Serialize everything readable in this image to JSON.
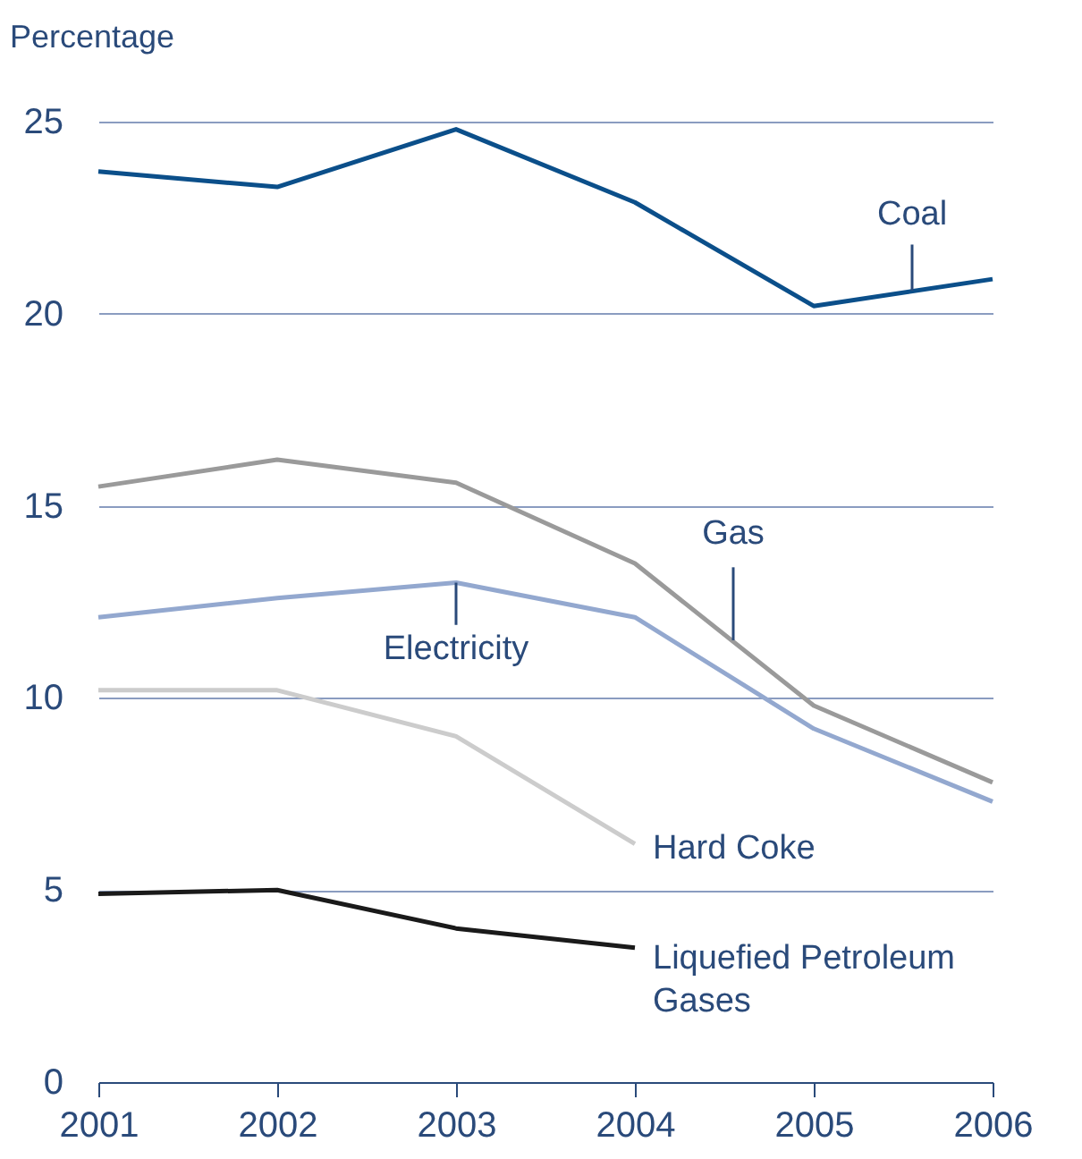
{
  "chart_data": {
    "type": "line",
    "ylabel": "Percentage",
    "x": [
      2001,
      2002,
      2003,
      2004,
      2005,
      2006
    ],
    "xlim": [
      2001,
      2006
    ],
    "xticks": [
      2001,
      2002,
      2003,
      2004,
      2005,
      2006
    ],
    "ylim": [
      0,
      25
    ],
    "yticks": [
      0,
      5,
      10,
      15,
      20,
      25
    ],
    "grid": "y",
    "legend": false,
    "marker": "none",
    "line_style": "solid",
    "series": [
      {
        "name": "Coal",
        "color": "#0b4f8a",
        "values": [
          23.7,
          23.3,
          24.8,
          22.9,
          20.2,
          20.9
        ]
      },
      {
        "name": "Gas",
        "color": "#9a9a9a",
        "values": [
          15.5,
          16.2,
          15.6,
          13.5,
          9.8,
          7.8
        ]
      },
      {
        "name": "Electricity",
        "color": "#93a8cf",
        "values": [
          12.1,
          12.6,
          13.0,
          12.1,
          9.2,
          7.3
        ]
      },
      {
        "name": "Hard Coke",
        "color": "#cccccc",
        "values": [
          10.2,
          10.2,
          9.0,
          6.2,
          null,
          null
        ]
      },
      {
        "name": "Liquefied Petroleum\nGases",
        "color": "#1a1a1a",
        "values": [
          4.9,
          5.0,
          4.0,
          3.5,
          null,
          null
        ]
      }
    ]
  }
}
